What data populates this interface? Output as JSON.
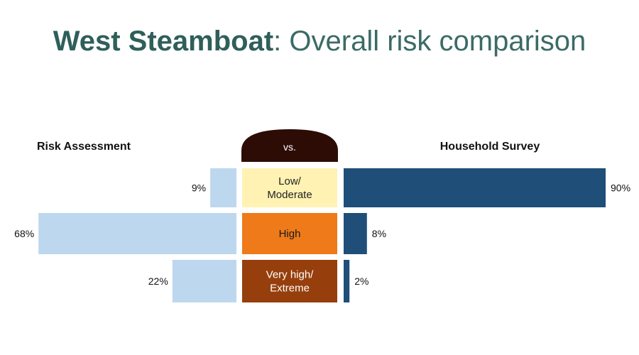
{
  "title": {
    "place": "West Steamboat",
    "separator": ":",
    "rest": " Overall risk comparison"
  },
  "chart_data": {
    "type": "bar",
    "orientation": "diverging-horizontal",
    "categories": [
      "Low/\nModerate",
      "High",
      "Very high/\nExtreme"
    ],
    "center_header": "vs.",
    "series": [
      {
        "name": "Risk Assessment",
        "side": "left",
        "values": [
          9,
          68,
          22
        ],
        "labels": [
          "9%",
          "68%",
          "22%"
        ],
        "color": "#bdd7ee"
      },
      {
        "name": "Household Survey",
        "side": "right",
        "values": [
          90,
          8,
          2
        ],
        "labels": [
          "90%",
          "8%",
          "2%"
        ],
        "color": "#1f4e79"
      }
    ],
    "category_colors": [
      "#fff2b3",
      "#ee7a1a",
      "#963f0c"
    ],
    "category_text_colors": [
      "#222222",
      "#1a1a1a",
      "#ffffff"
    ],
    "header_color": "#2e0c06",
    "xlim": [
      0,
      100
    ],
    "unit": "%"
  }
}
